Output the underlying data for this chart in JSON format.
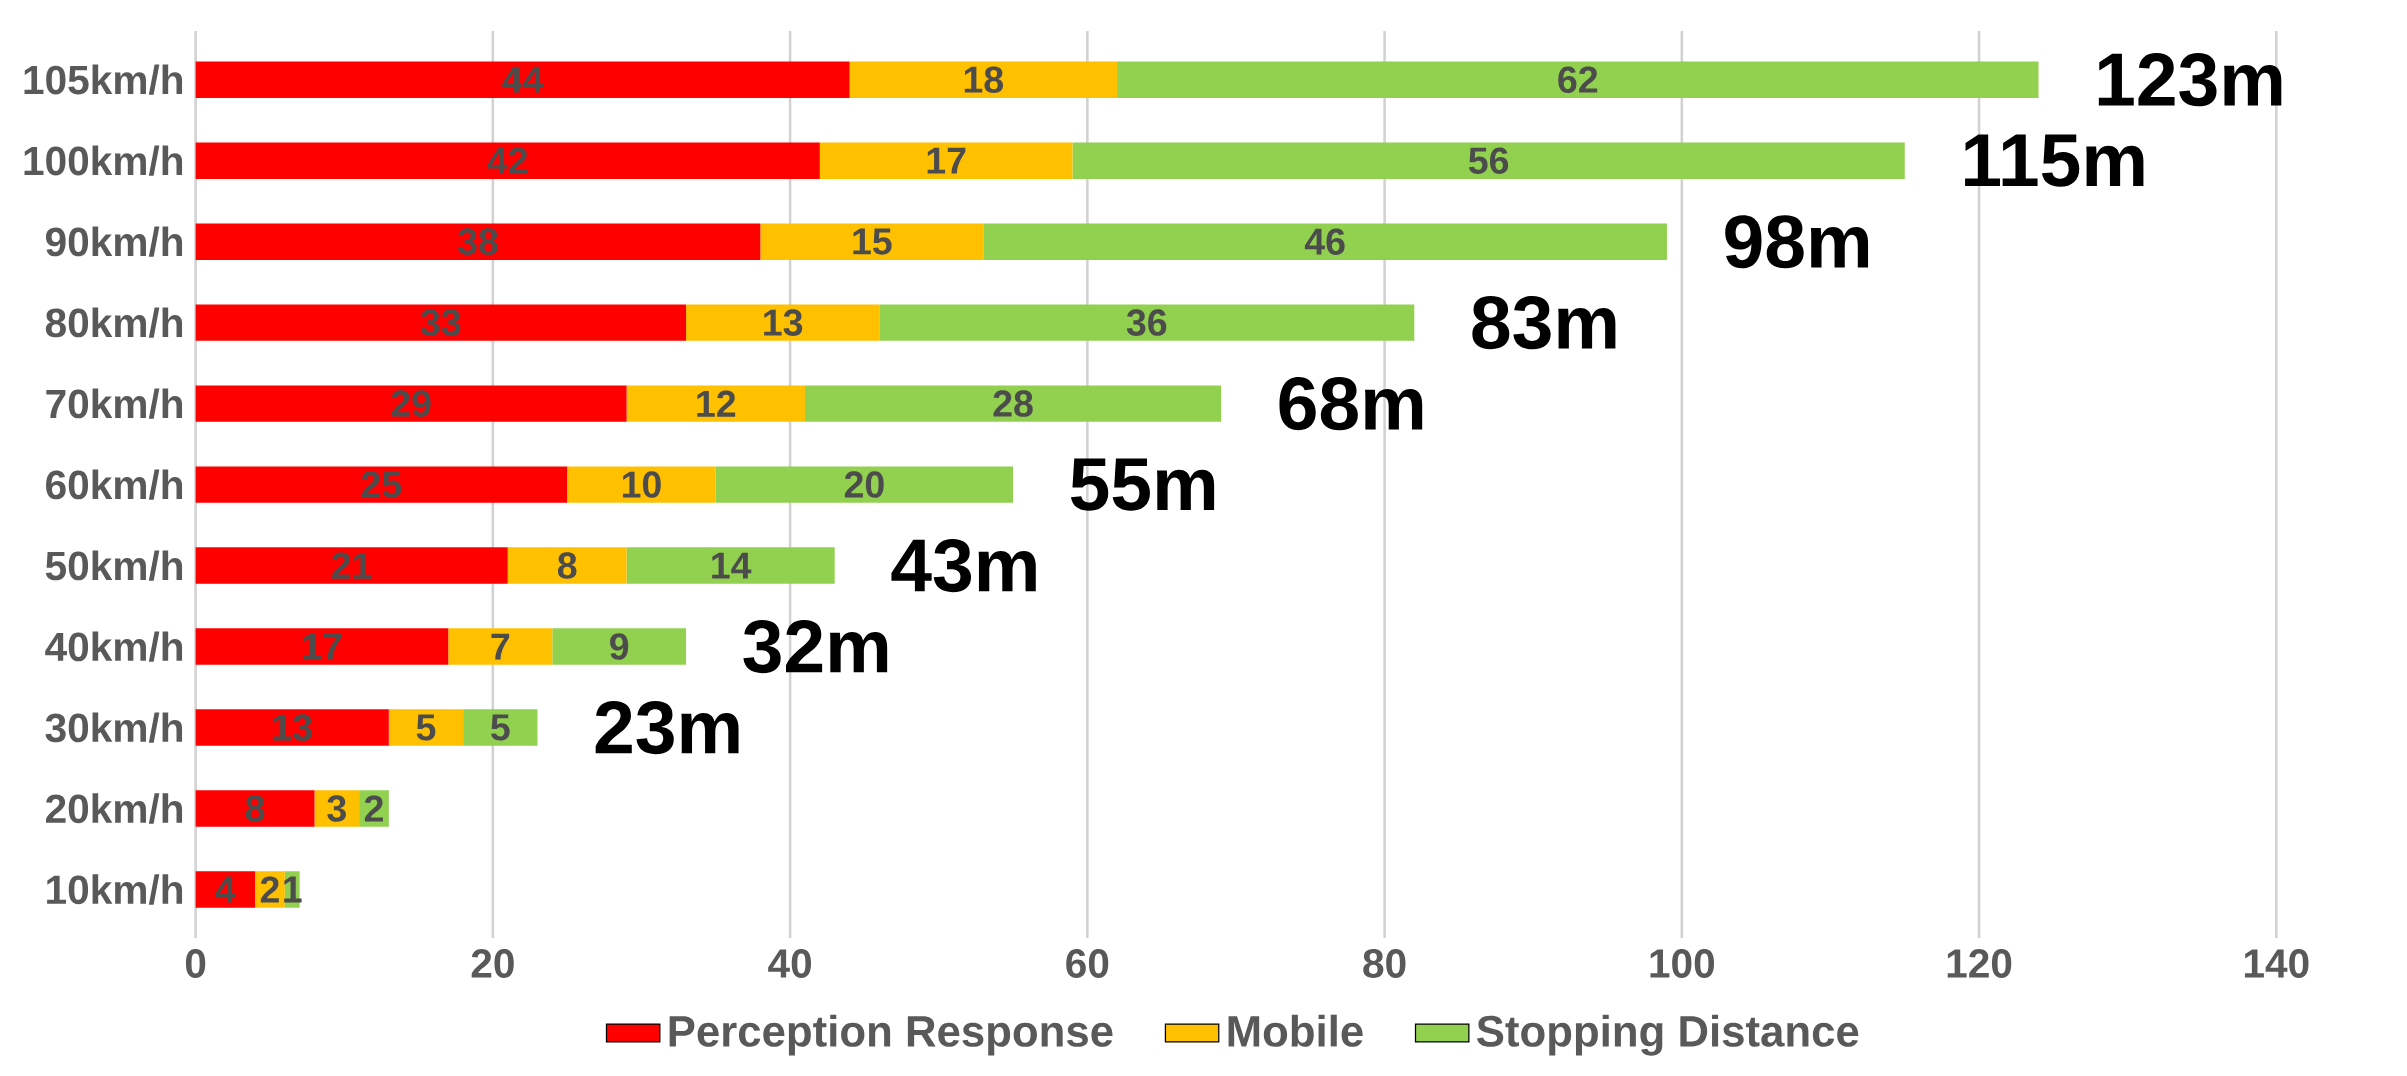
{
  "chart_data": {
    "type": "bar",
    "orientation": "horizontal",
    "stacked": true,
    "categories": [
      "105km/h",
      "100km/h",
      "90km/h",
      "80km/h",
      "70km/h",
      "60km/h",
      "50km/h",
      "40km/h",
      "30km/h",
      "20km/h",
      "10km/h"
    ],
    "series": [
      {
        "name": "Perception Response",
        "color": "#ff0000",
        "values": [
          44,
          42,
          38,
          33,
          29,
          25,
          21,
          17,
          13,
          8,
          4
        ]
      },
      {
        "name": "Mobile",
        "color": "#ffc000",
        "values": [
          18,
          17,
          15,
          13,
          12,
          10,
          8,
          7,
          5,
          3,
          2
        ]
      },
      {
        "name": "Stopping Distance",
        "color": "#92d050",
        "values": [
          62,
          56,
          46,
          36,
          28,
          20,
          14,
          9,
          5,
          2,
          1
        ]
      }
    ],
    "totals": [
      "123m",
      "115m",
      "98m",
      "83m",
      "68m",
      "55m",
      "43m",
      "32m",
      "23m",
      null,
      null
    ],
    "data_labels": true,
    "xlim": [
      0,
      140
    ],
    "xticks": [
      0,
      20,
      40,
      60,
      80,
      100,
      120,
      140
    ],
    "grid": "x",
    "legend": "bottom"
  }
}
